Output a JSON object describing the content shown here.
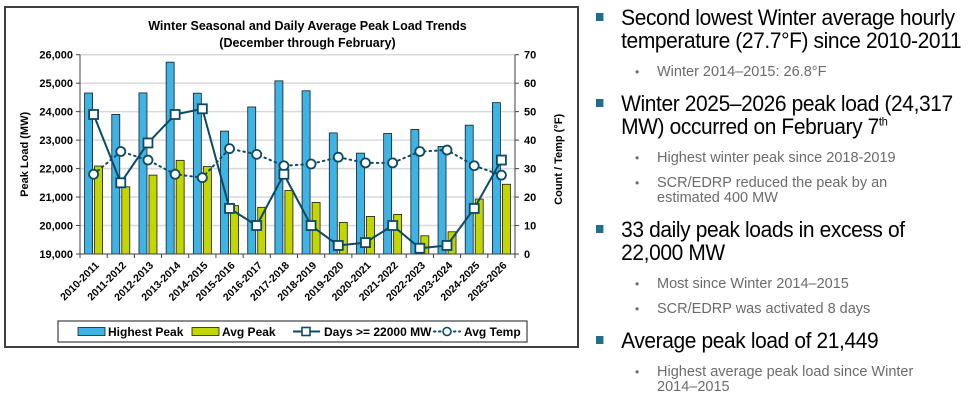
{
  "chart_data": {
    "type": "bar",
    "title": "Winter Seasonal and Daily Average Peak Load Trends",
    "subtitle": "(December through February)",
    "ylabel": "Peak Load (MW)",
    "y2label": "Count / Temp (°F)",
    "xlabel": "",
    "ylim": [
      19000,
      26000
    ],
    "y2lim": [
      0,
      70
    ],
    "yticks": [
      "19,000",
      "20,000",
      "21,000",
      "22,000",
      "23,000",
      "24,000",
      "25,000",
      "26,000"
    ],
    "y2ticks": [
      "0",
      "10",
      "20",
      "30",
      "40",
      "50",
      "60",
      "70"
    ],
    "grid": true,
    "legend_position": "bottom",
    "categories": [
      "2010-2011",
      "2011-2012",
      "2012-2013",
      "2013-2014",
      "2014-2015",
      "2015-2016",
      "2016-2017",
      "2017-2018",
      "2018-2019",
      "2019-2020",
      "2020-2021",
      "2021-2022",
      "2022-2023",
      "2023-2024",
      "2024-2025",
      "2025-2026"
    ],
    "series": [
      {
        "name": "Highest Peak",
        "type": "bar",
        "axis": "left",
        "color": "#3db4e5",
        "values": [
          24654,
          23901,
          24658,
          25738,
          24648,
          23317,
          24164,
          25081,
          24733,
          23253,
          22542,
          23232,
          23376,
          22779,
          23525,
          24317
        ]
      },
      {
        "name": "Avg Peak",
        "type": "bar",
        "axis": "left",
        "color": "#c2d600",
        "values": [
          22090,
          21360,
          21770,
          22290,
          22070,
          20700,
          20640,
          21230,
          20810,
          20110,
          20320,
          20390,
          19640,
          19780,
          20930,
          21449
        ]
      },
      {
        "name": "Days >= 22000 MW",
        "type": "line",
        "axis": "right",
        "color": "#0b4a66",
        "marker": "square",
        "values": [
          49,
          25,
          39,
          49,
          51,
          16,
          10,
          28,
          10,
          3,
          4,
          10,
          2,
          3,
          16,
          33
        ]
      },
      {
        "name": "Avg Temp",
        "type": "line",
        "axis": "right",
        "color": "#0b4a66",
        "marker": "circle",
        "dash": "dotted",
        "values": [
          28,
          36,
          33,
          28,
          26.8,
          37,
          35,
          31,
          31.6,
          34,
          32,
          32,
          36,
          36.5,
          31,
          27.7
        ]
      }
    ]
  },
  "bullets": [
    {
      "text": "Second lowest Winter average hourly temperature (27.7°F) since 2010-2011",
      "sup": "",
      "subs": [
        "Winter 2014–2015: 26.8°F"
      ]
    },
    {
      "text": "Winter 2025–2026 peak load (24,317 MW) occurred on February 7",
      "sup": "th",
      "subs": [
        "Highest winter peak since 2018-2019",
        "SCR/EDRP reduced the peak by an estimated 400 MW"
      ]
    },
    {
      "text": "33 daily peak loads in excess of 22,000 MW",
      "sup": "",
      "subs": [
        "Most since Winter 2014–2015",
        "SCR/EDRP was activated 8 days"
      ]
    },
    {
      "text": "Average peak load of 21,449",
      "sup": "",
      "subs": [
        "Highest average peak load since Winter 2014–2015"
      ]
    }
  ],
  "bullet_glyph": "•"
}
